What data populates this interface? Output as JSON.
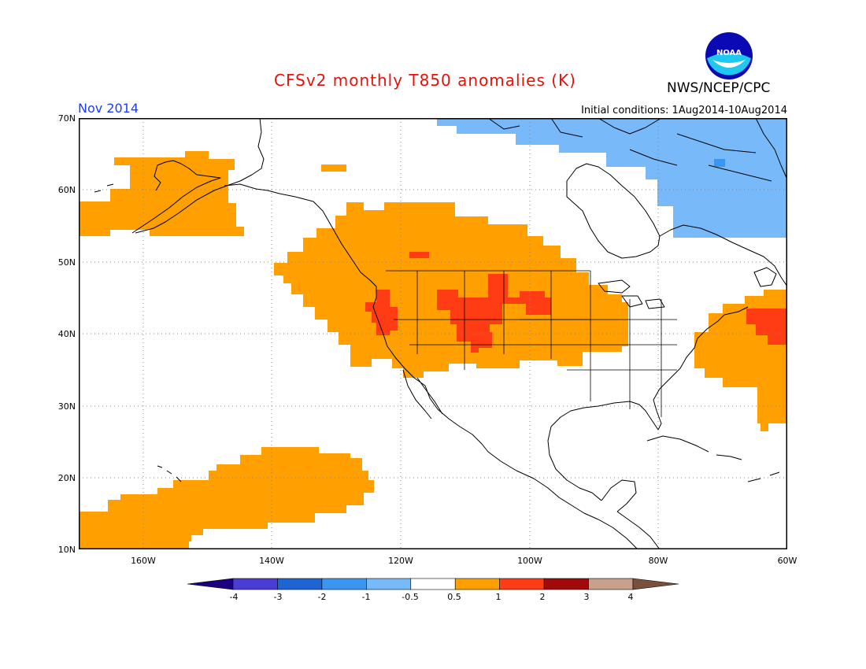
{
  "header": {
    "title": "CFSv2 monthly T850 anomalies (K)",
    "agency": "NWS/NCEP/CPC",
    "valid_month": "Nov 2014",
    "initial_conditions": "Initial conditions: 1Aug2014-10Aug2014",
    "logo_text": "NOAA"
  },
  "axes": {
    "lat_labels": [
      "70N",
      "60N",
      "50N",
      "40N",
      "30N",
      "20N",
      "10N"
    ],
    "lon_labels": [
      "160W",
      "140W",
      "120W",
      "100W",
      "80W",
      "60W"
    ]
  },
  "legend": {
    "labels": [
      "-4",
      "-3",
      "-2",
      "-1",
      "-0.5",
      "0.5",
      "1",
      "2",
      "3",
      "4"
    ],
    "colors": [
      "#1a0080",
      "#4b3cd6",
      "#1e64d2",
      "#3c96f0",
      "#78b9fa",
      "#ffffff",
      "#ffa000",
      "#ff3c14",
      "#a00a0a",
      "#c8a08c",
      "#78503c"
    ]
  },
  "map_colors": {
    "warm": "#ffa000",
    "hot": "#ff3c14",
    "cool": "#78b9fa",
    "coolpatch": "#3c96f0"
  }
}
